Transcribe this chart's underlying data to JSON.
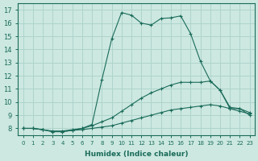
{
  "xlabel": "Humidex (Indice chaleur)",
  "xlim": [
    -0.5,
    23.5
  ],
  "ylim": [
    7.5,
    17.5
  ],
  "xticks": [
    0,
    1,
    2,
    3,
    4,
    5,
    6,
    7,
    8,
    9,
    10,
    11,
    12,
    13,
    14,
    15,
    16,
    17,
    18,
    19,
    20,
    21,
    22,
    23
  ],
  "yticks": [
    8,
    9,
    10,
    11,
    12,
    13,
    14,
    15,
    16,
    17
  ],
  "background_color": "#cce8e0",
  "grid_color": "#aed4cc",
  "line_color": "#1a6b5a",
  "line1_x": [
    0,
    1,
    2,
    3,
    4,
    5,
    6,
    7,
    8,
    9,
    10,
    11,
    12,
    13,
    14,
    15,
    16,
    17,
    18,
    19,
    20,
    21,
    22,
    23
  ],
  "line1_y": [
    8.0,
    8.0,
    7.9,
    7.75,
    7.75,
    7.85,
    7.9,
    8.0,
    8.1,
    8.2,
    8.4,
    8.6,
    8.8,
    9.0,
    9.2,
    9.4,
    9.5,
    9.6,
    9.7,
    9.8,
    9.7,
    9.5,
    9.3,
    9.1
  ],
  "line2_x": [
    0,
    1,
    2,
    3,
    4,
    5,
    6,
    7,
    8,
    9,
    10,
    11,
    12,
    13,
    14,
    15,
    16,
    17,
    18,
    19,
    20,
    21,
    22,
    23
  ],
  "line2_y": [
    8.0,
    8.0,
    7.9,
    7.8,
    7.8,
    7.9,
    8.0,
    8.2,
    8.5,
    8.8,
    9.3,
    9.8,
    10.3,
    10.7,
    11.0,
    11.3,
    11.5,
    11.5,
    11.5,
    11.6,
    10.9,
    9.6,
    9.5,
    9.0
  ],
  "line3_x": [
    0,
    1,
    2,
    3,
    4,
    5,
    6,
    7,
    8,
    9,
    10,
    11,
    12,
    13,
    14,
    15,
    16,
    17,
    18,
    19,
    20,
    21,
    22,
    23
  ],
  "line3_y": [
    8.0,
    8.0,
    7.9,
    7.75,
    7.75,
    7.85,
    8.0,
    8.3,
    11.7,
    14.8,
    16.8,
    16.6,
    16.0,
    15.85,
    16.35,
    16.4,
    16.55,
    15.2,
    13.1,
    11.6,
    10.9,
    9.5,
    9.5,
    9.2
  ]
}
